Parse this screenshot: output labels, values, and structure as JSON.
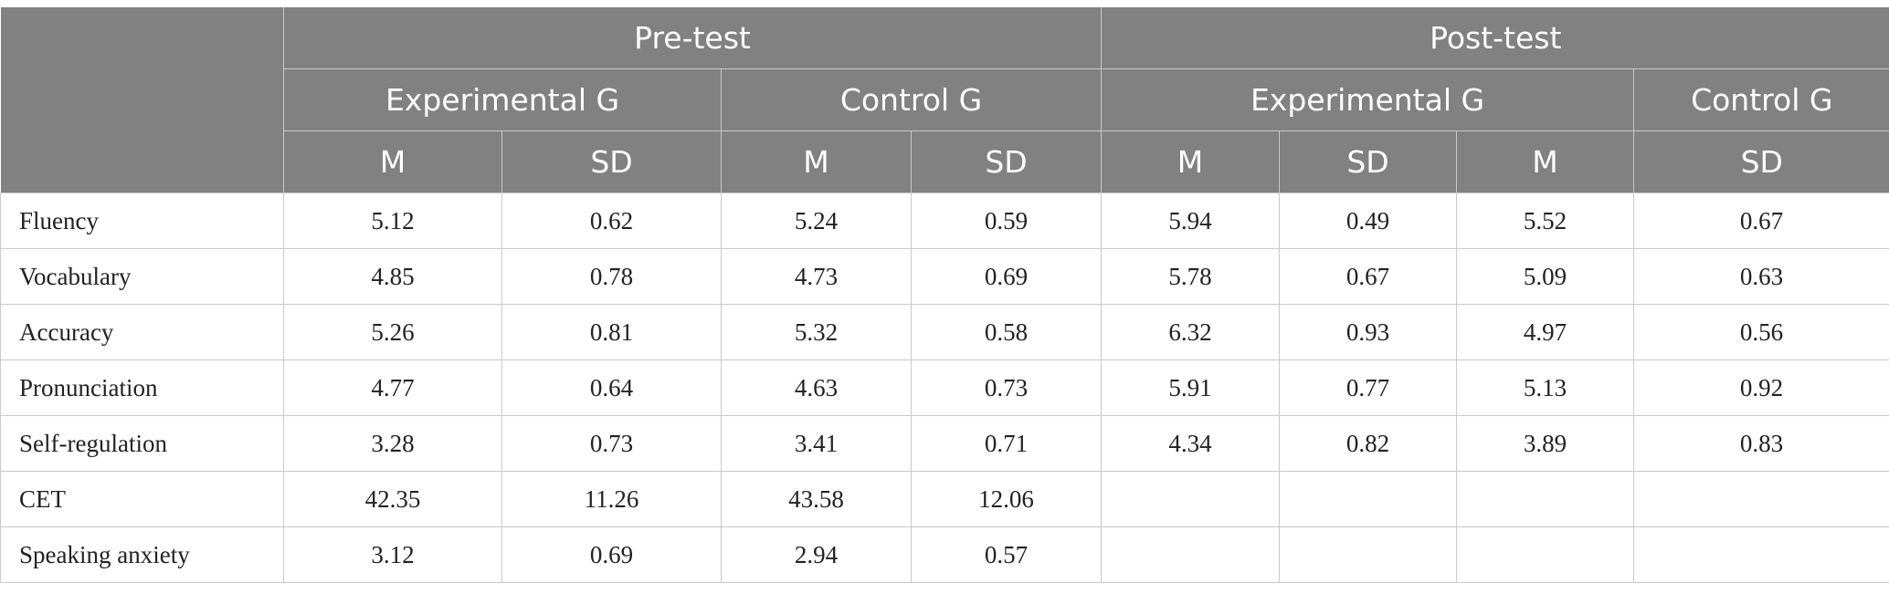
{
  "header": {
    "groups": [
      "Pre-test",
      "Post-test"
    ],
    "subgroups": [
      "Experimental G",
      "Control G",
      "Experimental G",
      "Control G"
    ],
    "stats": [
      "M",
      "SD",
      "M",
      "SD",
      "M",
      "SD",
      "M",
      "SD"
    ]
  },
  "rows": [
    {
      "label": "Fluency",
      "values": [
        "5.12",
        "0.62",
        "5.24",
        "0.59",
        "5.94",
        "0.49",
        "5.52",
        "0.67"
      ]
    },
    {
      "label": "Vocabulary",
      "values": [
        "4.85",
        "0.78",
        "4.73",
        "0.69",
        "5.78",
        "0.67",
        "5.09",
        "0.63"
      ]
    },
    {
      "label": "Accuracy",
      "values": [
        "5.26",
        "0.81",
        "5.32",
        "0.58",
        "6.32",
        "0.93",
        "4.97",
        "0.56"
      ]
    },
    {
      "label": "Pronunciation",
      "values": [
        "4.77",
        "0.64",
        "4.63",
        "0.73",
        "5.91",
        "0.77",
        "5.13",
        "0.92"
      ]
    },
    {
      "label": "Self-regulation",
      "values": [
        "3.28",
        "0.73",
        "3.41",
        "0.71",
        "4.34",
        "0.82",
        "3.89",
        "0.83"
      ]
    },
    {
      "label": "CET",
      "values": [
        "42.35",
        "11.26",
        "43.58",
        "12.06",
        "",
        "",
        "",
        ""
      ]
    },
    {
      "label": "Speaking anxiety",
      "values": [
        "3.12",
        "0.69",
        "2.94",
        "0.57",
        "",
        "",
        "",
        ""
      ]
    }
  ],
  "colors": {
    "header_bg": "#808180",
    "header_text": "#ffffff",
    "grid": "#c9c9c9"
  }
}
